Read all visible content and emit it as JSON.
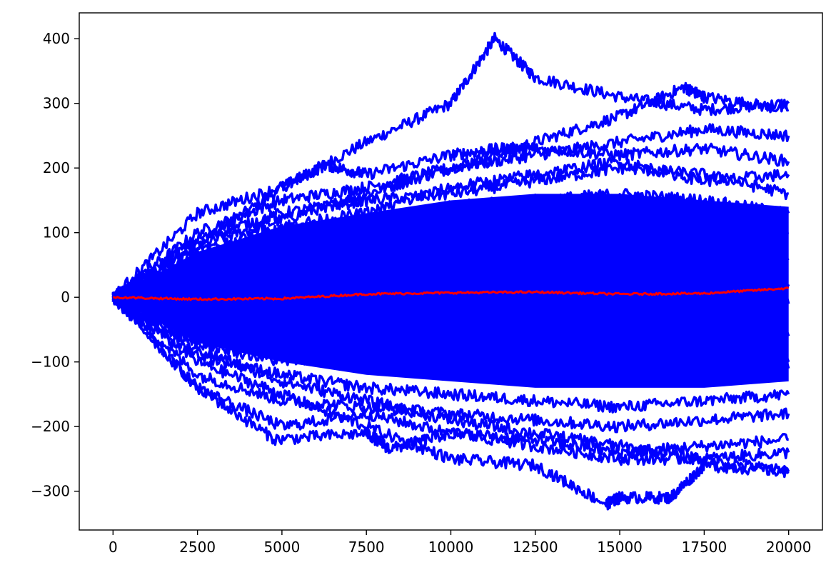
{
  "chart_data": {
    "type": "line",
    "title": "",
    "xlabel": "",
    "ylabel": "",
    "xlim": [
      -1000,
      21000
    ],
    "ylim": [
      -360,
      440
    ],
    "xticks": [
      0,
      2500,
      5000,
      7500,
      10000,
      12500,
      15000,
      17500,
      20000
    ],
    "xtick_labels": [
      "0",
      "2500",
      "5000",
      "7500",
      "10000",
      "12500",
      "15000",
      "17500",
      "20000"
    ],
    "yticks": [
      -300,
      -200,
      -100,
      0,
      100,
      200,
      300,
      400
    ],
    "ytick_labels": [
      "−300",
      "−200",
      "−100",
      "0",
      "100",
      "200",
      "300",
      "400"
    ],
    "grid": false,
    "legend": "none",
    "colors": {
      "paths": "#0000ff",
      "mean": "#ff0000"
    },
    "series": [
      {
        "x": [
          0,
          2500,
          5000,
          7500,
          10000,
          11300,
          12500,
          15000,
          17500,
          20000
        ],
        "y": [
          0,
          80,
          170,
          240,
          300,
          400,
          340,
          310,
          290,
          300
        ],
        "color": "#0000ff"
      },
      {
        "x": [
          0,
          2500,
          5000,
          7500,
          10000,
          12500,
          15000,
          16900,
          17500,
          20000
        ],
        "y": [
          0,
          80,
          120,
          160,
          200,
          240,
          280,
          325,
          310,
          290
        ],
        "color": "#0000ff"
      },
      {
        "x": [
          0,
          2500,
          5000,
          7500,
          10000,
          12500,
          15000,
          17500,
          20000
        ],
        "y": [
          0,
          100,
          150,
          170,
          200,
          220,
          240,
          260,
          250
        ],
        "color": "#0000ff"
      },
      {
        "x": [
          0,
          2500,
          5000,
          6300,
          7500,
          10000,
          11500,
          12500,
          15000,
          17500,
          20000
        ],
        "y": [
          0,
          130,
          170,
          205,
          190,
          220,
          230,
          230,
          220,
          230,
          210
        ],
        "color": "#0000ff"
      },
      {
        "x": [
          0,
          2500,
          5000,
          7500,
          10000,
          12500,
          15000,
          17500,
          20000
        ],
        "y": [
          0,
          90,
          130,
          150,
          160,
          180,
          200,
          190,
          160
        ],
        "color": "#0000ff"
      },
      {
        "x": [
          0,
          2500,
          5000,
          7500,
          10000,
          12500,
          15000,
          17500,
          20000
        ],
        "y": [
          0,
          60,
          100,
          120,
          140,
          150,
          160,
          150,
          130
        ],
        "color": "#0000ff"
      },
      {
        "x": [
          0,
          2500,
          5000,
          7500,
          10000,
          12500,
          15000,
          17500,
          20000
        ],
        "y": [
          0,
          50,
          80,
          100,
          110,
          120,
          130,
          110,
          100
        ],
        "color": "#0000ff"
      },
      {
        "x": [
          0,
          2500,
          5000,
          7500,
          10000,
          12500,
          15000,
          17500,
          20000
        ],
        "y": [
          0,
          40,
          60,
          70,
          80,
          90,
          80,
          70,
          60
        ],
        "color": "#0000ff"
      },
      {
        "x": [
          0,
          2500,
          5000,
          7500,
          10000,
          12500,
          15000,
          17500,
          20000
        ],
        "y": [
          0,
          20,
          30,
          40,
          50,
          40,
          30,
          30,
          20
        ],
        "color": "#0000ff"
      },
      {
        "x": [
          0,
          2500,
          5000,
          7500,
          10000,
          12500,
          15000,
          17500,
          20000
        ],
        "y": [
          0,
          -20,
          -30,
          -20,
          -10,
          -20,
          -30,
          -20,
          -10
        ],
        "color": "#0000ff"
      },
      {
        "x": [
          0,
          2500,
          5000,
          7500,
          10000,
          12500,
          15000,
          17500,
          20000
        ],
        "y": [
          0,
          -40,
          -60,
          -70,
          -80,
          -90,
          -80,
          -70,
          -60
        ],
        "color": "#0000ff"
      },
      {
        "x": [
          0,
          2500,
          5000,
          7500,
          10000,
          12500,
          15000,
          17500,
          20000
        ],
        "y": [
          0,
          -60,
          -90,
          -100,
          -110,
          -120,
          -130,
          -110,
          -100
        ],
        "color": "#0000ff"
      },
      {
        "x": [
          0,
          2500,
          5000,
          7500,
          10000,
          12500,
          15000,
          17500,
          20000
        ],
        "y": [
          0,
          -90,
          -120,
          -140,
          -150,
          -160,
          -170,
          -160,
          -150
        ],
        "color": "#0000ff"
      },
      {
        "x": [
          0,
          2500,
          5000,
          7500,
          10000,
          12500,
          15000,
          17500,
          20000
        ],
        "y": [
          0,
          -120,
          -160,
          -170,
          -180,
          -190,
          -200,
          -190,
          -180
        ],
        "color": "#0000ff"
      },
      {
        "x": [
          0,
          2500,
          5000,
          7500,
          10000,
          12500,
          15000,
          17500,
          20000
        ],
        "y": [
          0,
          -140,
          -200,
          -180,
          -210,
          -220,
          -240,
          -230,
          -220
        ],
        "color": "#0000ff"
      },
      {
        "x": [
          0,
          2500,
          4800,
          7500,
          8200,
          10000,
          12500,
          15000,
          17500,
          20000
        ],
        "y": [
          0,
          -140,
          -220,
          -210,
          -235,
          -210,
          -230,
          -250,
          -250,
          -240
        ],
        "color": "#0000ff"
      },
      {
        "x": [
          0,
          2500,
          5000,
          7500,
          10000,
          12500,
          14600,
          15000,
          16500,
          17500,
          20000
        ],
        "y": [
          0,
          -100,
          -150,
          -200,
          -250,
          -260,
          -320,
          -310,
          -310,
          -260,
          -270
        ],
        "color": "#0000ff"
      },
      {
        "x": [
          0,
          2500,
          5000,
          7500,
          10000,
          12500,
          15000,
          17500,
          20000
        ],
        "y": [
          0,
          -80,
          -130,
          -160,
          -190,
          -210,
          -230,
          -250,
          -270
        ],
        "color": "#0000ff"
      },
      {
        "x": [
          0,
          2500,
          5000,
          7500,
          10000,
          12500,
          15000,
          17500,
          20000
        ],
        "y": [
          0,
          70,
          110,
          130,
          170,
          190,
          210,
          180,
          190
        ],
        "color": "#0000ff"
      },
      {
        "x": [
          0,
          2500,
          5000,
          7500,
          10000,
          12500,
          15000,
          17500,
          20000
        ],
        "y": [
          0,
          -70,
          -100,
          -80,
          -60,
          -50,
          -70,
          -90,
          -110
        ],
        "color": "#0000ff"
      },
      {
        "x": [
          0,
          2500,
          5000,
          7500,
          10000,
          12500,
          15000,
          17500,
          20000
        ],
        "y": [
          0,
          -3,
          -2,
          5,
          7,
          8,
          5,
          6,
          14
        ],
        "color": "#ff0000"
      }
    ]
  }
}
